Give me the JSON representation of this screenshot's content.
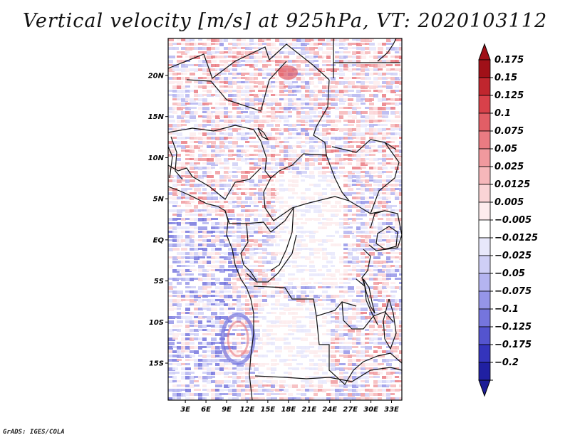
{
  "map": {
    "title": "Vertical velocity [m/s] at 925hPa, VT: 2020103112",
    "variable": "Vertical velocity",
    "units": "m/s",
    "level": "925hPa",
    "valid_time": "2020103112",
    "credit": "GrADS: IGES/COLA",
    "extent": {
      "lon_min": 0.5,
      "lon_max": 34.5,
      "lat_min": -19.5,
      "lat_max": 24.5
    },
    "lat_ticks": [
      {
        "value": 20,
        "label": "20N"
      },
      {
        "value": 15,
        "label": "15N"
      },
      {
        "value": 10,
        "label": "10N"
      },
      {
        "value": 5,
        "label": "5N"
      },
      {
        "value": 0,
        "label": "EQ"
      },
      {
        "value": -5,
        "label": "5S"
      },
      {
        "value": -10,
        "label": "10S"
      },
      {
        "value": -15,
        "label": "15S"
      }
    ],
    "lon_ticks": [
      {
        "value": 3,
        "label": "3E"
      },
      {
        "value": 6,
        "label": "6E"
      },
      {
        "value": 9,
        "label": "9E"
      },
      {
        "value": 12,
        "label": "12E"
      },
      {
        "value": 15,
        "label": "15E"
      },
      {
        "value": 18,
        "label": "18E"
      },
      {
        "value": 21,
        "label": "21E"
      },
      {
        "value": 24,
        "label": "24E"
      },
      {
        "value": 27,
        "label": "27E"
      },
      {
        "value": 30,
        "label": "30E"
      },
      {
        "value": 33,
        "label": "33E"
      }
    ],
    "colorbar": [
      {
        "label": "0.175",
        "color": "#a01018"
      },
      {
        "label": "0.15",
        "color": "#c0262e"
      },
      {
        "label": "0.125",
        "color": "#d8414a"
      },
      {
        "label": "0.1",
        "color": "#e25e66"
      },
      {
        "label": "0.075",
        "color": "#ea7b82"
      },
      {
        "label": "0.05",
        "color": "#f0999e"
      },
      {
        "label": "0.025",
        "color": "#f6b7ba"
      },
      {
        "label": "0.0125",
        "color": "#fad4d6"
      },
      {
        "label": "0.005",
        "color": "#fdeced"
      },
      {
        "label": "−0.005",
        "color": "#ffffff"
      },
      {
        "label": "−0.0125",
        "color": "#e8e8fb"
      },
      {
        "label": "−0.025",
        "color": "#cfcff6"
      },
      {
        "label": "−0.05",
        "color": "#b4b4f0"
      },
      {
        "label": "−0.075",
        "color": "#9595e8"
      },
      {
        "label": "−0.1",
        "color": "#7575dd"
      },
      {
        "label": "−0.125",
        "color": "#5454cf"
      },
      {
        "label": "−0.175",
        "color": "#3434bc"
      },
      {
        "label": "−0.2",
        "color": "#2020a2"
      }
    ],
    "colorbar_top_arrow_color": "#a01018",
    "colorbar_bottom_arrow_color": "#1c1c96"
  }
}
